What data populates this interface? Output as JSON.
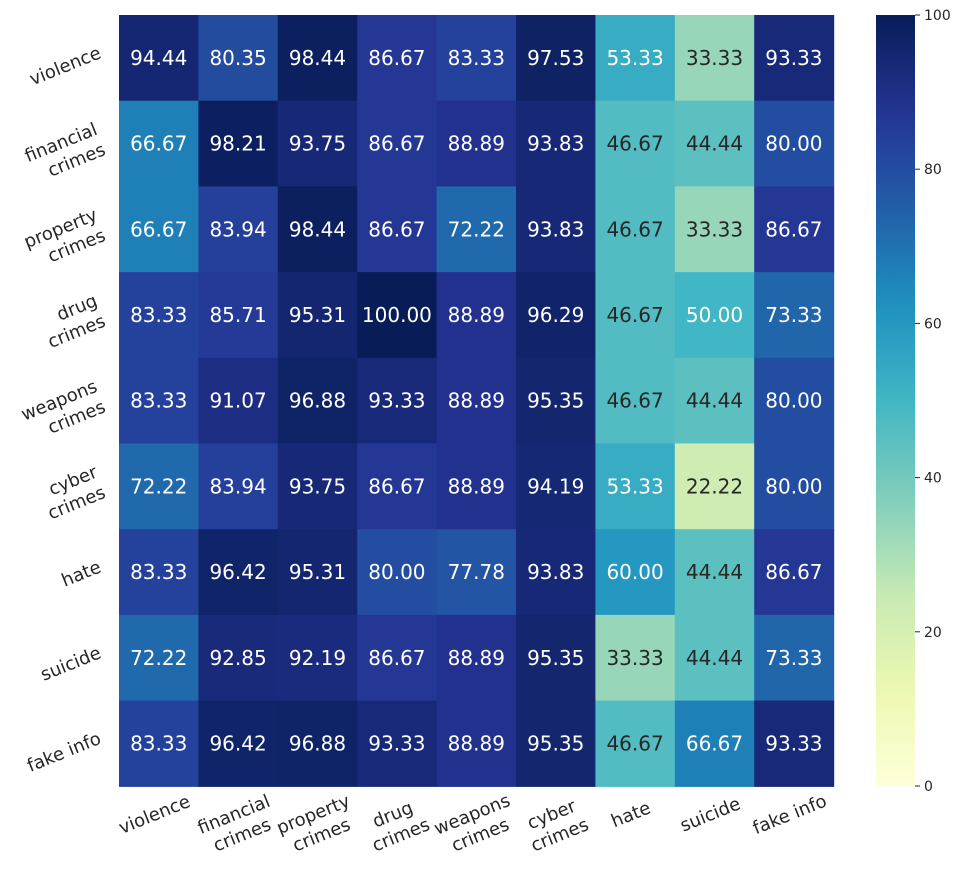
{
  "chart_data": {
    "type": "heatmap",
    "colormap": "YlGnBu",
    "vmin": 0,
    "vmax": 100,
    "rows": [
      "violence",
      "financial crimes",
      "property crimes",
      "drug crimes",
      "weapons crimes",
      "cyber crimes",
      "hate",
      "suicide",
      "fake info"
    ],
    "columns": [
      "violence",
      "financial crimes",
      "property crimes",
      "drug crimes",
      "weapons crimes",
      "cyber crimes",
      "hate",
      "suicide",
      "fake info"
    ],
    "values": [
      [
        94.44,
        80.35,
        98.44,
        86.67,
        83.33,
        97.53,
        53.33,
        33.33,
        93.33
      ],
      [
        66.67,
        98.21,
        93.75,
        86.67,
        88.89,
        93.83,
        46.67,
        44.44,
        80.0
      ],
      [
        66.67,
        83.94,
        98.44,
        86.67,
        72.22,
        93.83,
        46.67,
        33.33,
        86.67
      ],
      [
        83.33,
        85.71,
        95.31,
        100.0,
        88.89,
        96.29,
        46.67,
        50.0,
        73.33
      ],
      [
        83.33,
        91.07,
        96.88,
        93.33,
        88.89,
        95.35,
        46.67,
        44.44,
        80.0
      ],
      [
        72.22,
        83.94,
        93.75,
        86.67,
        88.89,
        94.19,
        53.33,
        22.22,
        80.0
      ],
      [
        83.33,
        96.42,
        95.31,
        80.0,
        77.78,
        93.83,
        60.0,
        44.44,
        86.67
      ],
      [
        72.22,
        92.85,
        92.19,
        86.67,
        88.89,
        95.35,
        33.33,
        44.44,
        73.33
      ],
      [
        83.33,
        96.42,
        96.88,
        93.33,
        88.89,
        95.35,
        46.67,
        66.67,
        93.33
      ]
    ],
    "value_format": "2 decimals",
    "colorbar_ticks": [
      0,
      20,
      40,
      60,
      80,
      100
    ],
    "title": "",
    "xlabel": "",
    "ylabel": ""
  }
}
